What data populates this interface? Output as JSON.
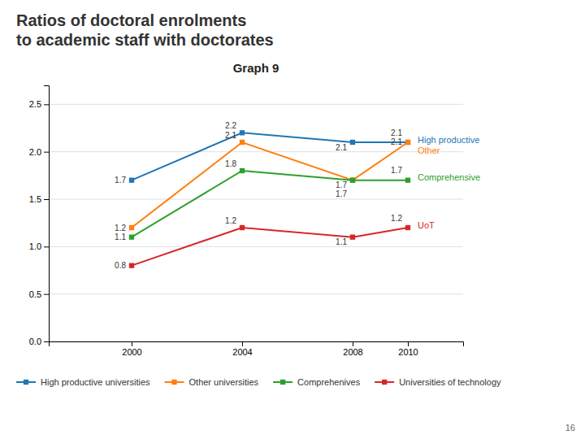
{
  "chart_data": {
    "type": "line",
    "title": "Ratios of doctoral enrolments\nto academic staff with doctorates",
    "subtitle": "Graph 9",
    "x": [
      2000,
      2004,
      2008,
      2010
    ],
    "series": [
      {
        "name": "High productive universities",
        "values": [
          1.7,
          2.2,
          2.1,
          2.1
        ],
        "annotation": "High productive"
      },
      {
        "name": "Other universities",
        "values": [
          1.2,
          2.1,
          1.7,
          2.1
        ],
        "annotation": "Other"
      },
      {
        "name": "Comprehenives",
        "values": [
          1.1,
          1.8,
          1.7,
          1.7
        ],
        "annotation": "Comprehensive"
      },
      {
        "name": "Universities of technology",
        "values": [
          0.8,
          1.2,
          1.1,
          1.2
        ],
        "annotation": "UoT"
      }
    ],
    "xlim": [
      1997,
      2012
    ],
    "xticks": [
      2000,
      2004,
      2008,
      2010
    ],
    "ylim": [
      0.0,
      2.7
    ],
    "yticks": [
      {
        "value": 0.0,
        "label": "0.0"
      },
      0.5,
      {
        "value": 1.0,
        "label": "1.0"
      },
      1.5,
      {
        "value": 2.0,
        "label": "2.0"
      },
      2.5
    ],
    "grid": true,
    "legend": "bottom",
    "marker": "square",
    "data_labels": true,
    "annotations": [
      "16"
    ]
  }
}
